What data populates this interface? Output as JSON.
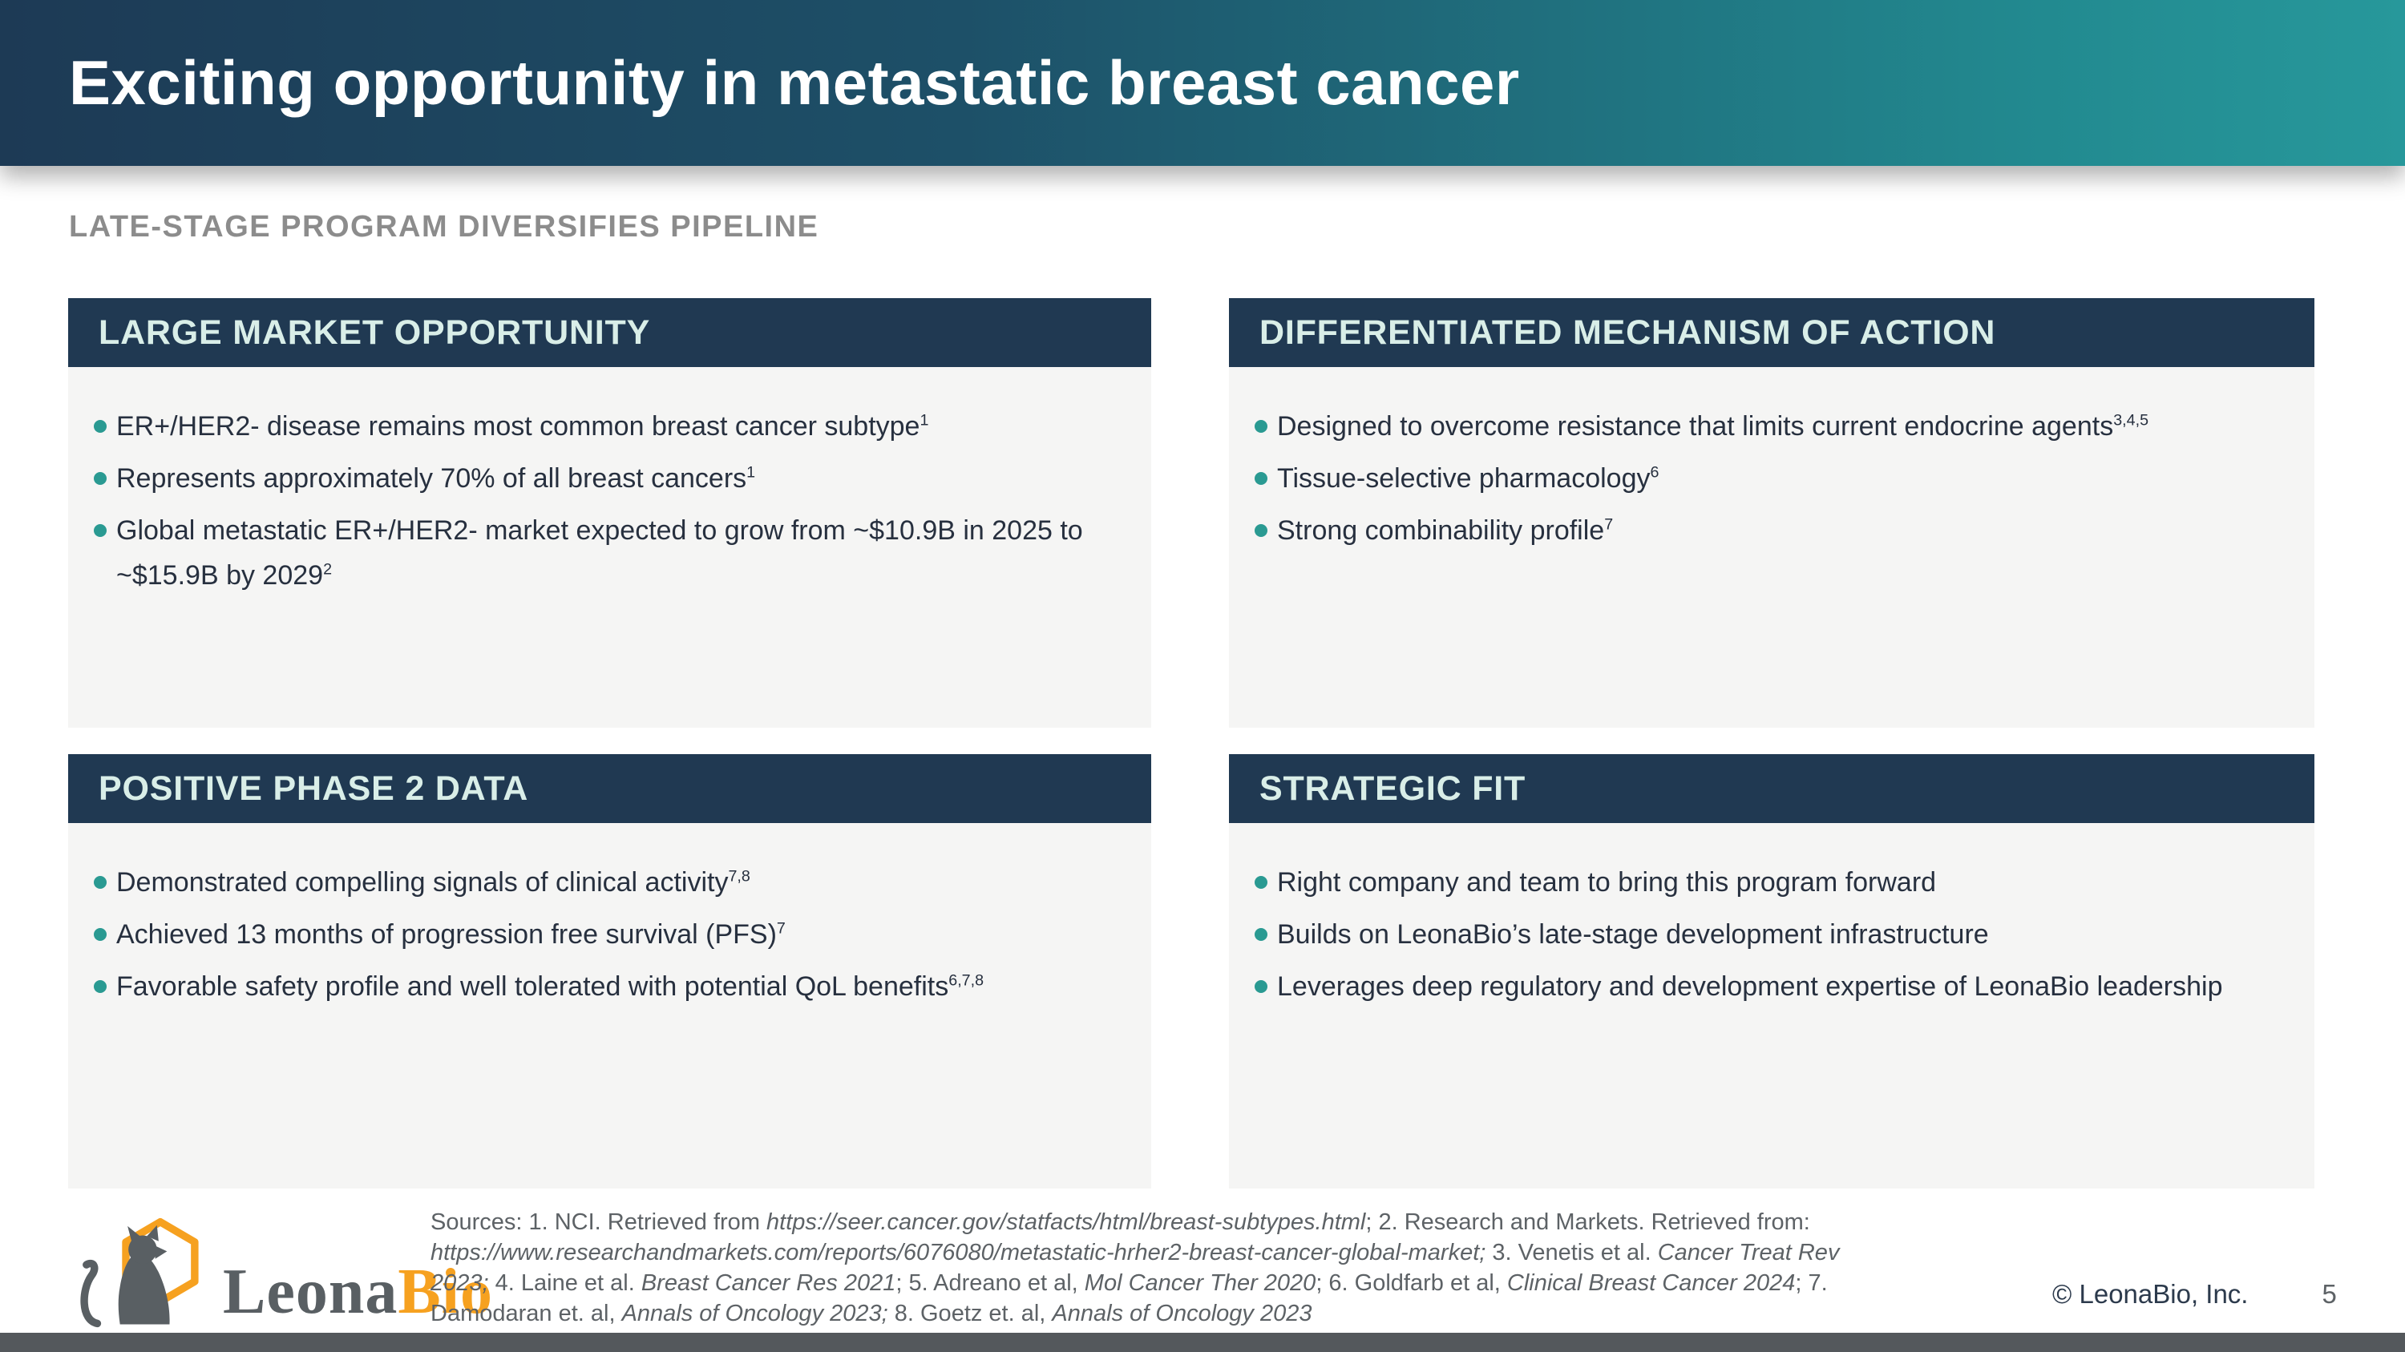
{
  "header": {
    "title": "Exciting opportunity in metastatic breast cancer"
  },
  "subtitle": "LATE-STAGE PROGRAM DIVERSIFIES PIPELINE",
  "boxes": [
    {
      "title": "LARGE MARKET OPPORTUNITY",
      "bullets": [
        "ER+/HER2- disease remains most common breast cancer subtype^{1}",
        "Represents approximately 70% of all breast cancers^{1}",
        "Global metastatic ER+/HER2- market expected to grow from ~$10.9B in 2025 to ~$15.9B by 2029^{2}"
      ]
    },
    {
      "title": "DIFFERENTIATED MECHANISM OF ACTION",
      "bullets": [
        "Designed to overcome resistance that limits current endocrine agents^{3,4,5}",
        "Tissue-selective pharmacology^{6}",
        "Strong combinability profile^{7}"
      ]
    },
    {
      "title": "POSITIVE PHASE 2 DATA",
      "bullets": [
        "Demonstrated compelling signals of clinical activity^{7,8}",
        "Achieved 13 months of progression free survival (PFS)^{7}",
        "Favorable safety profile and well tolerated with potential QoL benefits^{6,7,8}"
      ]
    },
    {
      "title": "STRATEGIC FIT",
      "bullets": [
        "Right company and team to bring this program forward",
        "Builds on LeonaBio’s late-stage development infrastructure",
        "Leverages deep regulatory and development expertise of LeonaBio leadership"
      ]
    }
  ],
  "sources": {
    "lines": [
      [
        {
          "t": "Sources: 1. NCI. Retrieved from "
        },
        {
          "t": "https://seer.cancer.gov/statfacts/html/breast-subtypes.html",
          "i": true
        },
        {
          "t": "; 2. Research and Markets. Retrieved from:"
        }
      ],
      [
        {
          "t": "https://www.researchandmarkets.com/reports/6076080/metastatic-hrher2-breast-cancer-global-market; ",
          "i": true
        },
        {
          "t": "3. Venetis et al. "
        },
        {
          "t": "Cancer Treat Rev",
          "i": true
        }
      ],
      [
        {
          "t": "2023;",
          "i": true
        },
        {
          "t": " 4. Laine et al. "
        },
        {
          "t": "Breast Cancer Res 2021",
          "i": true
        },
        {
          "t": "; 5. Adreano et al, "
        },
        {
          "t": "Mol Cancer Ther 2020",
          "i": true
        },
        {
          "t": "; 6. Goldfarb et al, "
        },
        {
          "t": "Clinical Breast Cancer 2024",
          "i": true
        },
        {
          "t": "; 7."
        }
      ],
      [
        {
          "t": "Damodaran et. al, "
        },
        {
          "t": "Annals of Oncology 2023;",
          "i": true
        },
        {
          "t": " 8. Goetz et. al, "
        },
        {
          "t": "Annals of Oncology 2023",
          "i": true
        }
      ]
    ]
  },
  "logo": {
    "text_primary": "Leona",
    "text_accent": "Bio"
  },
  "footer": {
    "copyright": "© LeonaBio, Inc.",
    "page_number": "5"
  },
  "colors": {
    "navy": "#203952",
    "teal_accent": "#2a9a92",
    "header_gradient_left": "#1d3a55",
    "header_gradient_right": "#27989b",
    "box_body_bg": "#f5f5f4",
    "box_header_text": "#d9eee8",
    "orange": "#f6a120",
    "text_dark": "#27303f",
    "text_gray": "#5d6266",
    "subtitle_gray": "#8c8c8c",
    "bottom_bar": "#54585c"
  }
}
